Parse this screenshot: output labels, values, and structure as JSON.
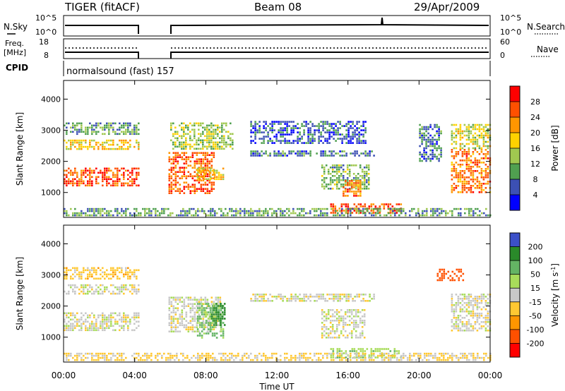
{
  "header": {
    "radar": "TIGER (fitACF)",
    "beam": "Beam 08",
    "date": "29/Apr/2009"
  },
  "strips": {
    "nsky_label": "N.Sky",
    "nsky_ticks": [
      "10^5",
      "10^0"
    ],
    "nsearch_label": "N.Search",
    "nsearch_ticks": [
      "10^5",
      "10^0"
    ],
    "freq_label_line1": "Freq.",
    "freq_label_line2": "[MHz]",
    "freq_ticks": [
      "18",
      "8"
    ],
    "nave_label": "Nave",
    "nave_ticks": [
      "60",
      "0"
    ],
    "cpid_label": "CPID",
    "cpid_text": "normalsound (fast) 157"
  },
  "colorbars": {
    "power": {
      "label": "Power [dB]",
      "ticks": [
        "28",
        "24",
        "20",
        "16",
        "12",
        "8",
        "4"
      ],
      "colors": [
        "#ff0000",
        "#ff5000",
        "#ff9600",
        "#ffd200",
        "#a0c850",
        "#50a050",
        "#3c50b4",
        "#0000ff"
      ]
    },
    "velocity": {
      "label_main": "Velocity [m s",
      "label_sup": "-1",
      "label_end": "]",
      "ticks": [
        "200",
        "100",
        "50",
        "15",
        "-15",
        "-50",
        "-100",
        "-200"
      ],
      "colors": [
        "#3c50c8",
        "#2a8a2a",
        "#64b464",
        "#a8dc5a",
        "#c8c8c8",
        "#ffc832",
        "#ff9600",
        "#ff5000",
        "#ff0000"
      ]
    }
  },
  "axes": {
    "ylabel": "Slant Range [km]",
    "xlabel": "Time UT",
    "yticks": [
      "1000",
      "2000",
      "3000",
      "4000"
    ],
    "xticks": [
      "00:00",
      "04:00",
      "08:00",
      "12:00",
      "16:00",
      "20:00",
      "00:00"
    ]
  },
  "chart_data": [
    {
      "type": "heatmap",
      "title": "",
      "variable": "power",
      "xlabel": "Time UT",
      "ylabel": "Slant Range [km]",
      "xlim": [
        0,
        24
      ],
      "ylim": [
        200,
        4600
      ],
      "unit_x": "hours UT",
      "data_gap_hours": [
        4.2,
        5.9
      ],
      "regions": [
        {
          "t": [
            0,
            4.2
          ],
          "r": [
            1200,
            1800
          ],
          "value_db": 26
        },
        {
          "t": [
            0,
            4.2
          ],
          "r": [
            2400,
            2700
          ],
          "value_db": 18
        },
        {
          "t": [
            0,
            4.2
          ],
          "r": [
            2850,
            3250
          ],
          "value_db": 10
        },
        {
          "t": [
            5.9,
            8.5
          ],
          "r": [
            1000,
            2300
          ],
          "value_db": 25
        },
        {
          "t": [
            7.5,
            9.0
          ],
          "r": [
            1400,
            1800
          ],
          "value_db": 18
        },
        {
          "t": [
            6.0,
            9.5
          ],
          "r": [
            2400,
            3250
          ],
          "value_db": 14
        },
        {
          "t": [
            10.5,
            17.5
          ],
          "r": [
            2150,
            2350
          ],
          "value_db": 8
        },
        {
          "t": [
            10.5,
            17.0
          ],
          "r": [
            2600,
            3300
          ],
          "value_db": 6
        },
        {
          "t": [
            14.5,
            17.2
          ],
          "r": [
            1100,
            1900
          ],
          "value_db": 12
        },
        {
          "t": [
            15.7,
            16.7
          ],
          "r": [
            900,
            1400
          ],
          "value_db": 24
        },
        {
          "t": [
            15.0,
            19.0
          ],
          "r": [
            350,
            650
          ],
          "value_db": 26
        },
        {
          "t": [
            0,
            24
          ],
          "r": [
            250,
            500
          ],
          "value_db": 10
        },
        {
          "t": [
            20.0,
            21.3
          ],
          "r": [
            2000,
            3200
          ],
          "value_db": 8
        },
        {
          "t": [
            21.8,
            24.0
          ],
          "r": [
            1000,
            2400
          ],
          "value_db": 24
        },
        {
          "t": [
            21.8,
            24.0
          ],
          "r": [
            2400,
            3200
          ],
          "value_db": 16
        }
      ]
    },
    {
      "type": "heatmap",
      "title": "",
      "variable": "velocity",
      "xlabel": "Time UT",
      "ylabel": "Slant Range [km]",
      "xlim": [
        0,
        24
      ],
      "ylim": [
        200,
        4600
      ],
      "unit_x": "hours UT",
      "data_gap_hours": [
        4.2,
        5.9
      ],
      "regions": [
        {
          "t": [
            0,
            4.2
          ],
          "r": [
            1200,
            1800
          ],
          "value_ms": 0
        },
        {
          "t": [
            0,
            4.2
          ],
          "r": [
            2400,
            2700
          ],
          "value_ms": 0
        },
        {
          "t": [
            0,
            4.2
          ],
          "r": [
            2900,
            3250
          ],
          "value_ms": -30
        },
        {
          "t": [
            5.9,
            8.8
          ],
          "r": [
            1200,
            2300
          ],
          "value_ms": 0
        },
        {
          "t": [
            7.5,
            9.0
          ],
          "r": [
            1000,
            2100
          ],
          "value_ms": 60
        },
        {
          "t": [
            8.3,
            9.1
          ],
          "r": [
            1400,
            2100
          ],
          "value_ms": 150
        },
        {
          "t": [
            10.5,
            17.5
          ],
          "r": [
            2150,
            2400
          ],
          "value_ms": 0
        },
        {
          "t": [
            14.5,
            17.0
          ],
          "r": [
            1000,
            1900
          ],
          "value_ms": 0
        },
        {
          "t": [
            15.0,
            19.0
          ],
          "r": [
            350,
            650
          ],
          "value_ms": 40
        },
        {
          "t": [
            0,
            24
          ],
          "r": [
            250,
            500
          ],
          "value_ms": -20
        },
        {
          "t": [
            21.8,
            24.0
          ],
          "r": [
            1200,
            2400
          ],
          "value_ms": 0
        },
        {
          "t": [
            21.0,
            22.5
          ],
          "r": [
            2800,
            3200
          ],
          "value_ms": -150
        }
      ]
    }
  ]
}
